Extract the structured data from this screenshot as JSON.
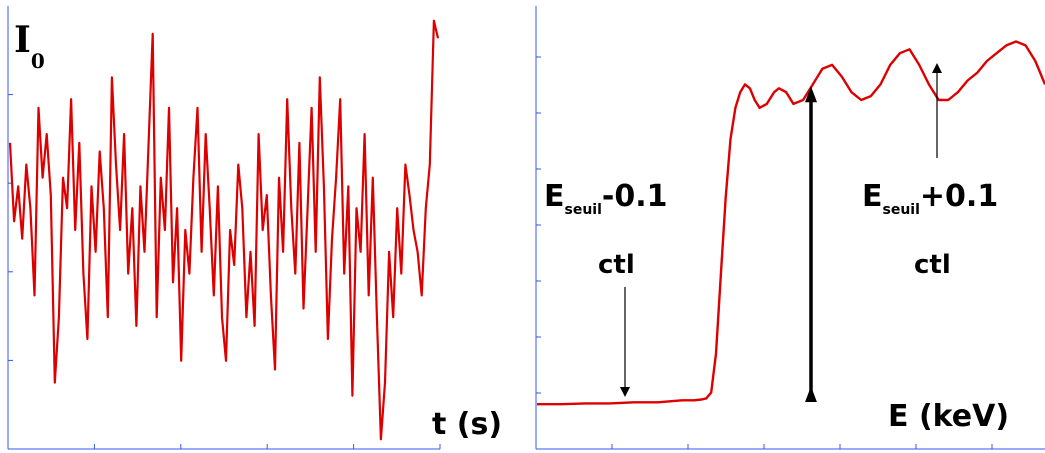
{
  "chart_data": [
    {
      "type": "line",
      "ylabel_main": "I",
      "ylabel_sub": "0",
      "xlabel": "t (s)",
      "color": "#dd0000",
      "axis_color": "#3355ee",
      "x_ticks": 5,
      "y_ticks": 4,
      "series": [
        {
          "values": [
            0.7,
            0.52,
            0.6,
            0.48,
            0.65,
            0.55,
            0.35,
            0.78,
            0.62,
            0.72,
            0.58,
            0.15,
            0.3,
            0.62,
            0.55,
            0.8,
            0.5,
            0.7,
            0.4,
            0.25,
            0.6,
            0.45,
            0.68,
            0.55,
            0.3,
            0.85,
            0.65,
            0.5,
            0.72,
            0.4,
            0.55,
            0.28,
            0.6,
            0.45,
            0.7,
            0.95,
            0.3,
            0.62,
            0.5,
            0.78,
            0.38,
            0.55,
            0.2,
            0.5,
            0.4,
            0.62,
            0.78,
            0.45,
            0.72,
            0.55,
            0.35,
            0.6,
            0.3,
            0.2,
            0.5,
            0.42,
            0.65,
            0.55,
            0.3,
            0.45,
            0.28,
            0.72,
            0.5,
            0.58,
            0.35,
            0.18,
            0.62,
            0.45,
            0.8,
            0.55,
            0.4,
            0.7,
            0.32,
            0.55,
            0.78,
            0.45,
            0.85,
            0.6,
            0.25,
            0.48,
            0.62,
            0.8,
            0.4,
            0.6,
            0.12,
            0.55,
            0.45,
            0.72,
            0.35,
            0.62,
            0.3,
            0.02,
            0.15,
            0.45,
            0.3,
            0.55,
            0.4,
            0.65,
            0.58,
            0.5,
            0.45,
            0.35,
            0.55,
            0.65,
            0.98,
            0.94
          ]
        }
      ]
    },
    {
      "type": "line",
      "xlabel": "E (keV)",
      "color": "#dd0000",
      "axis_color": "#3355ee",
      "x_ticks": 7,
      "y_ticks": 7,
      "edge_arrow": {
        "from": 0.02,
        "to": 0.83
      },
      "annotations": [
        {
          "main": "E",
          "sub": "seuil",
          "rest": "-0.1",
          "line2": "ctl"
        },
        {
          "main": "E",
          "sub": "seuil",
          "rest": "+0.1",
          "line2": "ctl"
        }
      ],
      "series": [
        {
          "x": [
            0,
            10,
            20,
            30,
            40,
            50,
            60,
            65,
            68,
            70,
            72,
            74,
            76,
            78,
            80,
            82,
            84,
            86,
            88,
            90,
            92,
            95,
            98,
            100,
            103,
            106,
            110,
            114,
            118,
            122,
            126,
            130,
            134,
            138,
            142,
            146,
            150,
            154,
            158,
            162,
            166,
            170,
            174,
            178,
            182,
            186,
            190,
            194,
            198,
            202,
            206,
            210
          ],
          "y": [
            0.02,
            0.02,
            0.022,
            0.022,
            0.025,
            0.025,
            0.03,
            0.03,
            0.032,
            0.035,
            0.05,
            0.15,
            0.35,
            0.55,
            0.7,
            0.78,
            0.82,
            0.84,
            0.83,
            0.8,
            0.78,
            0.79,
            0.82,
            0.83,
            0.82,
            0.79,
            0.8,
            0.84,
            0.88,
            0.89,
            0.86,
            0.82,
            0.8,
            0.81,
            0.84,
            0.89,
            0.92,
            0.93,
            0.89,
            0.84,
            0.8,
            0.8,
            0.82,
            0.85,
            0.87,
            0.9,
            0.92,
            0.94,
            0.95,
            0.94,
            0.9,
            0.84
          ]
        }
      ]
    }
  ]
}
